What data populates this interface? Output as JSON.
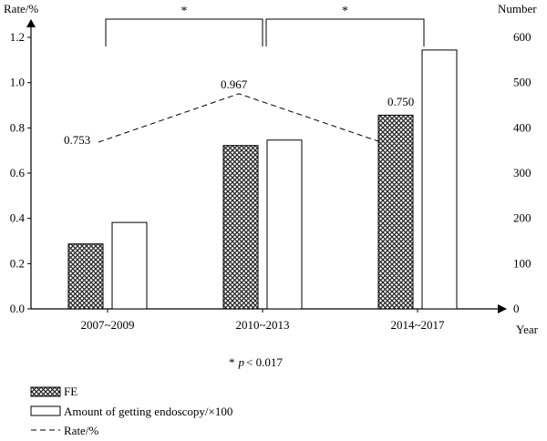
{
  "chart_data": {
    "type": "bar",
    "categories": [
      "2007~2009",
      "2010~2013",
      "2014~2017"
    ],
    "series": [
      {
        "name": "FE",
        "axis": "left",
        "values": [
          0.287,
          0.722,
          0.856
        ]
      },
      {
        "name": "Amount of getting endoscopy/×100",
        "axis": "right",
        "values": [
          191,
          373,
          572
        ]
      },
      {
        "name": "Rate/%",
        "type": "line",
        "axis": "left",
        "values": [
          0.753,
          0.967,
          0.75
        ]
      }
    ],
    "rate_labels": [
      "0.753",
      "0.967",
      "0.750"
    ],
    "y_left": {
      "label": "Rate/%",
      "ylim": [
        0,
        1.3
      ],
      "ticks": [
        "0.0",
        "0.2",
        "0.4",
        "0.6",
        "0.8",
        "1.0",
        "1.2"
      ]
    },
    "y_right": {
      "label": "Number",
      "ylim": [
        0,
        650
      ],
      "ticks": [
        "0",
        "100",
        "200",
        "300",
        "400",
        "500",
        "600"
      ]
    },
    "xlabel": "Year",
    "significance": [
      {
        "from": "2007~2009",
        "to": "2010~2013",
        "label": "*"
      },
      {
        "from": "2010~2013",
        "to": "2014~2017",
        "label": "*"
      }
    ],
    "note": {
      "star": "*",
      "p": "p",
      "rest": "< 0.017"
    },
    "legend": {
      "placement": "bottom-left",
      "items": [
        {
          "kind": "patterned-bar",
          "label": "FE"
        },
        {
          "kind": "open-bar",
          "label": "Amount of getting endoscopy/×100"
        },
        {
          "kind": "dashed-line",
          "label": "Rate/%"
        }
      ]
    },
    "grid": false
  }
}
